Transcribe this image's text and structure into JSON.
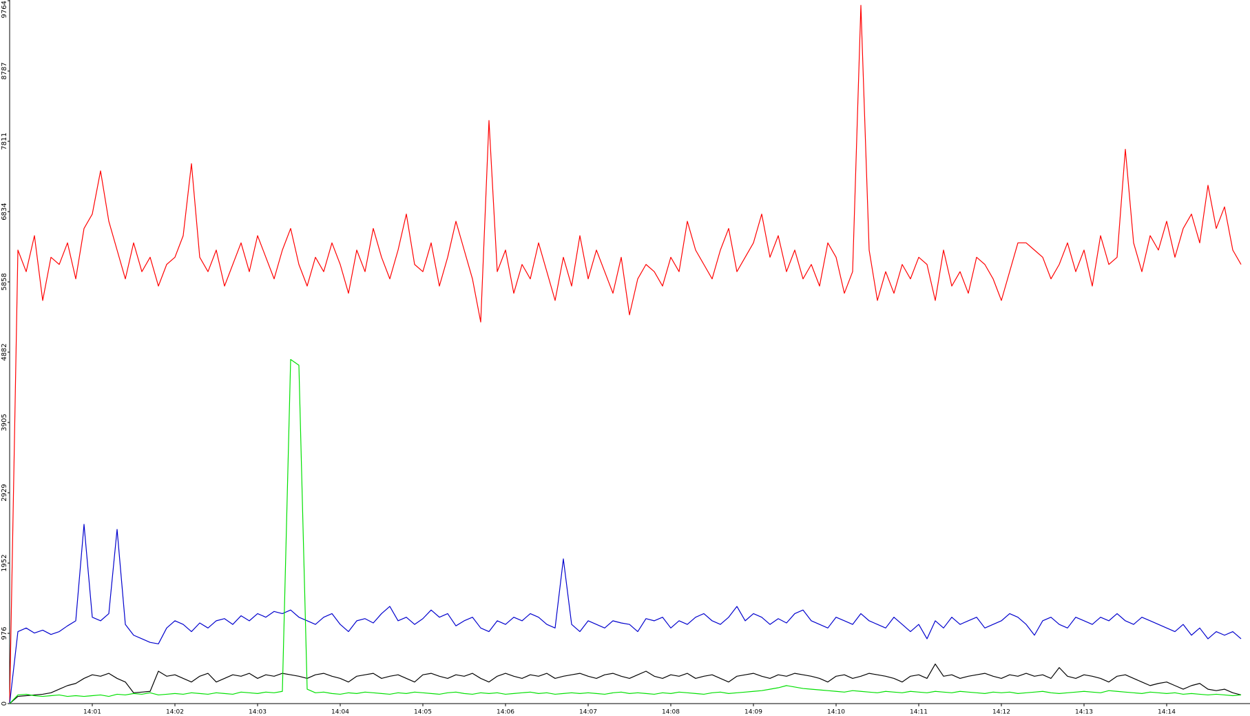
{
  "chart_data": {
    "type": "line",
    "x": [
      0,
      0.1,
      0.2,
      0.3,
      0.4,
      0.5,
      0.6,
      0.7,
      0.8,
      0.9,
      1,
      1.1,
      1.2,
      1.3,
      1.4,
      1.5,
      1.6,
      1.7,
      1.8,
      1.9,
      2,
      2.1,
      2.2,
      2.3,
      2.4,
      2.5,
      2.6,
      2.7,
      2.8,
      2.9,
      3,
      3.1,
      3.2,
      3.3,
      3.4,
      3.5,
      3.6,
      3.7,
      3.8,
      3.9,
      4,
      4.1,
      4.2,
      4.3,
      4.4,
      4.5,
      4.6,
      4.7,
      4.8,
      4.9,
      5,
      5.1,
      5.2,
      5.3,
      5.4,
      5.5,
      5.6,
      5.7,
      5.8,
      5.9,
      6,
      6.1,
      6.2,
      6.3,
      6.4,
      6.5,
      6.6,
      6.7,
      6.8,
      6.9,
      7,
      7.1,
      7.2,
      7.3,
      7.4,
      7.5,
      7.6,
      7.7,
      7.8,
      7.9,
      8,
      8.1,
      8.2,
      8.3,
      8.4,
      8.5,
      8.6,
      8.7,
      8.8,
      8.9,
      9,
      9.1,
      9.2,
      9.3,
      9.4,
      9.5,
      9.6,
      9.7,
      9.8,
      9.9,
      10,
      10.1,
      10.2,
      10.3,
      10.4,
      10.5,
      10.6,
      10.7,
      10.8,
      10.9,
      11,
      11.1,
      11.2,
      11.3,
      11.4,
      11.5,
      11.6,
      11.7,
      11.8,
      11.9,
      12,
      12.1,
      12.2,
      12.3,
      12.4,
      12.5,
      12.6,
      12.7,
      12.8,
      12.9,
      13,
      13.1,
      13.2,
      13.3,
      13.4,
      13.5,
      13.6,
      13.7,
      13.8,
      13.9,
      14,
      14.1,
      14.2,
      14.3,
      14.4,
      14.5,
      14.6,
      14.7,
      14.8,
      14.9
    ],
    "series": [
      {
        "color": "#ff0000",
        "values": [
          0,
          6300,
          6000,
          6500,
          5600,
          6200,
          6100,
          6400,
          5900,
          6600,
          6800,
          7400,
          6700,
          6300,
          5900,
          6400,
          6000,
          6200,
          5800,
          6100,
          6200,
          6500,
          7500,
          6200,
          6000,
          6300,
          5800,
          6100,
          6400,
          6000,
          6500,
          6200,
          5900,
          6300,
          6600,
          6100,
          5800,
          6200,
          6000,
          6400,
          6100,
          5700,
          6300,
          6000,
          6600,
          6200,
          5900,
          6300,
          6800,
          6100,
          6000,
          6400,
          5800,
          6200,
          6700,
          6300,
          5900,
          5300,
          8100,
          6000,
          6300,
          5700,
          6100,
          5900,
          6400,
          6000,
          5600,
          6200,
          5800,
          6500,
          5900,
          6300,
          6000,
          5700,
          6200,
          5400,
          5900,
          6100,
          6000,
          5800,
          6200,
          6000,
          6700,
          6300,
          6100,
          5900,
          6300,
          6600,
          6000,
          6200,
          6400,
          6800,
          6200,
          6500,
          6000,
          6300,
          5900,
          6100,
          5800,
          6400,
          6200,
          5700,
          6000,
          9700,
          6300,
          5600,
          6000,
          5700,
          6100,
          5900,
          6200,
          6100,
          5600,
          6300,
          5800,
          6000,
          5700,
          6200,
          6100,
          5900,
          5600,
          6000,
          6400,
          6400,
          6300,
          6200,
          5900,
          6100,
          6400,
          6000,
          6300,
          5800,
          6500,
          6100,
          6200,
          7700,
          6400,
          6000,
          6500,
          6300,
          6700,
          6200,
          6600,
          6800,
          6400,
          7200,
          6600,
          6900,
          6300,
          6100
        ]
      },
      {
        "color": "#0000cd",
        "values": [
          0,
          1000,
          1050,
          980,
          1020,
          960,
          1000,
          1080,
          1150,
          2490,
          1200,
          1150,
          1250,
          2420,
          1100,
          950,
          900,
          850,
          830,
          1050,
          1150,
          1100,
          1000,
          1120,
          1050,
          1150,
          1180,
          1100,
          1220,
          1150,
          1250,
          1200,
          1280,
          1250,
          1300,
          1200,
          1150,
          1100,
          1200,
          1250,
          1100,
          1000,
          1150,
          1180,
          1120,
          1250,
          1350,
          1150,
          1200,
          1100,
          1180,
          1300,
          1200,
          1250,
          1080,
          1150,
          1200,
          1050,
          1000,
          1150,
          1100,
          1200,
          1150,
          1250,
          1200,
          1100,
          1050,
          2010,
          1100,
          1000,
          1150,
          1100,
          1050,
          1150,
          1120,
          1100,
          1000,
          1180,
          1150,
          1200,
          1050,
          1150,
          1100,
          1200,
          1250,
          1150,
          1100,
          1200,
          1350,
          1150,
          1250,
          1200,
          1100,
          1180,
          1120,
          1250,
          1300,
          1150,
          1100,
          1050,
          1200,
          1150,
          1100,
          1250,
          1150,
          1100,
          1050,
          1200,
          1100,
          1000,
          1100,
          900,
          1150,
          1050,
          1200,
          1100,
          1150,
          1200,
          1050,
          1100,
          1150,
          1250,
          1200,
          1100,
          950,
          1150,
          1200,
          1100,
          1050,
          1200,
          1150,
          1100,
          1200,
          1150,
          1250,
          1150,
          1100,
          1200,
          1150,
          1100,
          1050,
          1000,
          1100,
          950,
          1050,
          900,
          1000,
          950,
          1000,
          900
        ]
      },
      {
        "color": "#000000",
        "values": [
          0,
          100,
          110,
          120,
          130,
          150,
          200,
          250,
          280,
          350,
          400,
          380,
          420,
          350,
          300,
          150,
          160,
          170,
          450,
          380,
          400,
          350,
          300,
          380,
          420,
          300,
          350,
          400,
          380,
          420,
          350,
          400,
          380,
          420,
          400,
          380,
          350,
          400,
          420,
          380,
          350,
          300,
          380,
          400,
          420,
          350,
          380,
          400,
          350,
          300,
          400,
          420,
          380,
          350,
          400,
          380,
          420,
          350,
          300,
          380,
          420,
          380,
          350,
          400,
          380,
          420,
          350,
          380,
          400,
          420,
          380,
          350,
          400,
          420,
          380,
          350,
          400,
          450,
          380,
          350,
          400,
          380,
          420,
          350,
          380,
          400,
          350,
          300,
          380,
          400,
          420,
          380,
          350,
          400,
          380,
          420,
          400,
          380,
          350,
          300,
          380,
          400,
          350,
          380,
          420,
          400,
          380,
          350,
          300,
          380,
          400,
          350,
          550,
          380,
          400,
          350,
          380,
          400,
          420,
          380,
          350,
          400,
          380,
          420,
          380,
          400,
          350,
          500,
          380,
          350,
          400,
          380,
          350,
          300,
          380,
          400,
          350,
          300,
          250,
          280,
          300,
          250,
          200,
          250,
          280,
          200,
          180,
          200,
          150,
          120
        ]
      },
      {
        "color": "#00e000",
        "values": [
          0,
          120,
          130,
          110,
          100,
          110,
          120,
          100,
          110,
          100,
          110,
          120,
          100,
          130,
          120,
          140,
          130,
          150,
          120,
          130,
          140,
          130,
          150,
          140,
          130,
          150,
          140,
          130,
          160,
          150,
          140,
          160,
          150,
          170,
          4780,
          4700,
          200,
          150,
          160,
          140,
          130,
          150,
          140,
          160,
          150,
          140,
          130,
          150,
          140,
          160,
          150,
          140,
          130,
          150,
          160,
          140,
          130,
          150,
          140,
          150,
          130,
          140,
          150,
          160,
          140,
          150,
          130,
          140,
          150,
          140,
          150,
          140,
          130,
          150,
          160,
          140,
          150,
          140,
          130,
          150,
          140,
          160,
          150,
          140,
          130,
          150,
          160,
          140,
          150,
          160,
          170,
          180,
          200,
          220,
          250,
          230,
          210,
          200,
          190,
          180,
          170,
          160,
          180,
          170,
          160,
          150,
          170,
          160,
          150,
          170,
          160,
          150,
          170,
          160,
          150,
          170,
          160,
          150,
          140,
          160,
          150,
          160,
          140,
          150,
          160,
          170,
          150,
          140,
          150,
          160,
          170,
          160,
          150,
          180,
          170,
          160,
          150,
          140,
          160,
          150,
          140,
          150,
          130,
          140,
          130,
          120,
          130,
          120,
          110,
          120
        ]
      }
    ],
    "xlim": [
      0,
      15
    ],
    "xticks": [
      {
        "value": 1,
        "label": "14:01"
      },
      {
        "value": 2,
        "label": "14:02"
      },
      {
        "value": 3,
        "label": "14:03"
      },
      {
        "value": 4,
        "label": "14:04"
      },
      {
        "value": 5,
        "label": "14:05"
      },
      {
        "value": 6,
        "label": "14:06"
      },
      {
        "value": 7,
        "label": "14:07"
      },
      {
        "value": 8,
        "label": "14:08"
      },
      {
        "value": 9,
        "label": "14:09"
      },
      {
        "value": 10,
        "label": "14:10"
      },
      {
        "value": 11,
        "label": "14:11"
      },
      {
        "value": 12,
        "label": "14:12"
      },
      {
        "value": 13,
        "label": "14:13"
      },
      {
        "value": 14,
        "label": "14:14"
      }
    ],
    "ylim": [
      0,
      9764
    ],
    "yticks": [
      0,
      976,
      1952,
      2929,
      3905,
      4882,
      5858,
      6834,
      7811,
      8787,
      9764
    ],
    "grid": false
  }
}
